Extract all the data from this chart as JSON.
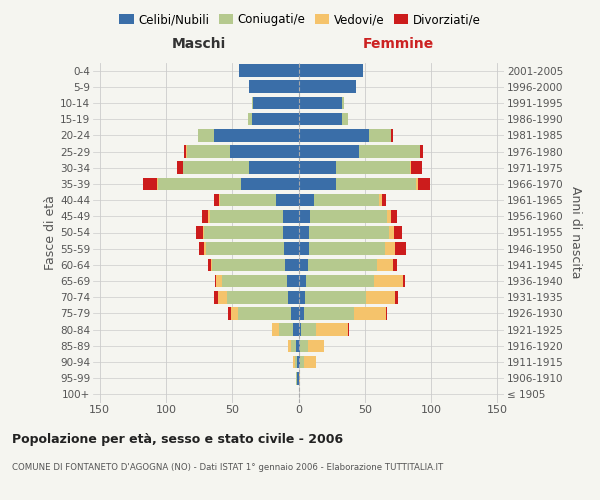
{
  "age_groups": [
    "100+",
    "95-99",
    "90-94",
    "85-89",
    "80-84",
    "75-79",
    "70-74",
    "65-69",
    "60-64",
    "55-59",
    "50-54",
    "45-49",
    "40-44",
    "35-39",
    "30-34",
    "25-29",
    "20-24",
    "15-19",
    "10-14",
    "5-9",
    "0-4"
  ],
  "birth_years": [
    "≤ 1905",
    "1906-1910",
    "1911-1915",
    "1916-1920",
    "1921-1925",
    "1926-1930",
    "1931-1935",
    "1936-1940",
    "1941-1945",
    "1946-1950",
    "1951-1955",
    "1956-1960",
    "1961-1965",
    "1966-1970",
    "1971-1975",
    "1976-1980",
    "1981-1985",
    "1986-1990",
    "1991-1995",
    "1996-2000",
    "2001-2005"
  ],
  "maschi": {
    "celibi": [
      0,
      1,
      1,
      2,
      4,
      6,
      8,
      9,
      10,
      11,
      12,
      12,
      17,
      43,
      37,
      52,
      64,
      35,
      34,
      37,
      45
    ],
    "coniugati": [
      0,
      1,
      2,
      4,
      11,
      40,
      46,
      49,
      55,
      59,
      59,
      55,
      42,
      63,
      50,
      32,
      12,
      3,
      1,
      0,
      0
    ],
    "vedovi": [
      0,
      0,
      1,
      2,
      5,
      5,
      7,
      4,
      1,
      1,
      1,
      1,
      1,
      1,
      0,
      1,
      0,
      0,
      0,
      0,
      0
    ],
    "divorziati": [
      0,
      0,
      0,
      0,
      0,
      2,
      3,
      1,
      2,
      4,
      5,
      5,
      4,
      10,
      5,
      1,
      0,
      0,
      0,
      0,
      0
    ]
  },
  "femmine": {
    "nubili": [
      0,
      0,
      1,
      1,
      2,
      4,
      5,
      6,
      7,
      8,
      8,
      9,
      12,
      28,
      28,
      46,
      53,
      33,
      33,
      43,
      49
    ],
    "coniugate": [
      0,
      0,
      3,
      6,
      11,
      38,
      46,
      51,
      52,
      57,
      60,
      58,
      49,
      61,
      56,
      46,
      17,
      4,
      1,
      0,
      0
    ],
    "vedove": [
      0,
      1,
      9,
      12,
      24,
      24,
      22,
      22,
      12,
      8,
      4,
      3,
      2,
      1,
      1,
      0,
      0,
      0,
      0,
      0,
      0
    ],
    "divorziate": [
      0,
      0,
      0,
      0,
      1,
      1,
      2,
      1,
      3,
      8,
      6,
      4,
      3,
      9,
      8,
      2,
      1,
      0,
      0,
      0,
      0
    ]
  },
  "colors": {
    "celibi": "#3a6ea8",
    "coniugati": "#b5c98e",
    "vedovi": "#f5c36b",
    "divorziati": "#cc1c1c"
  },
  "xlim": 155,
  "title": "Popolazione per età, sesso e stato civile - 2006",
  "subtitle": "COMUNE DI FONTANETO D'AGOGNA (NO) - Dati ISTAT 1° gennaio 2006 - Elaborazione TUTTITALIA.IT",
  "ylabel_left": "Fasce di età",
  "ylabel_right": "Anni di nascita",
  "xlabel_left": "Maschi",
  "xlabel_right": "Femmine",
  "bg_color": "#f5f5f0",
  "grid_color": "#cccccc"
}
